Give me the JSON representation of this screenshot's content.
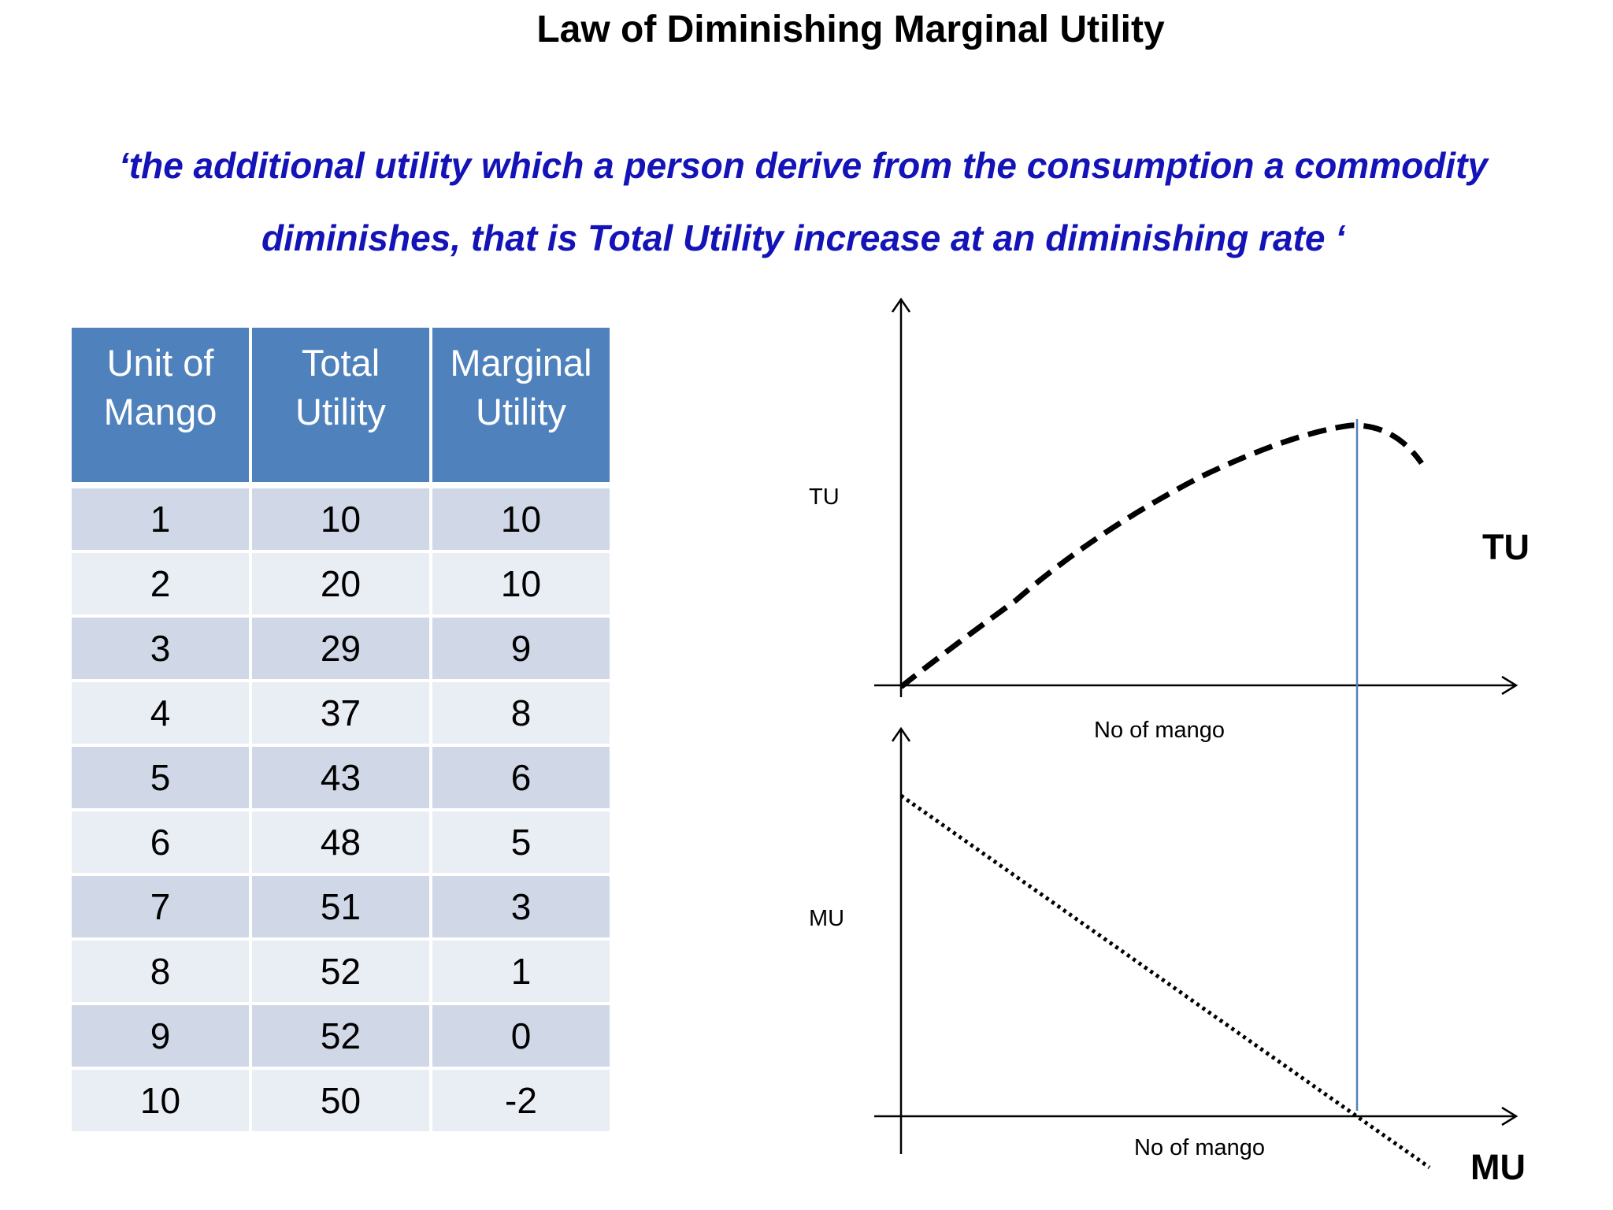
{
  "title": "Law of Diminishing Marginal Utility",
  "definition": {
    "line1": "‘the additional utility which a person derive from the consumption a commodity",
    "line2": "diminishes, that is Total Utility increase at an diminishing rate ‘"
  },
  "table": {
    "headers": [
      [
        "Unit of",
        "Mango"
      ],
      [
        "Total",
        "Utility"
      ],
      [
        "Marginal",
        "Utility"
      ]
    ],
    "rows": [
      [
        "1",
        "10",
        "10"
      ],
      [
        "2",
        "20",
        "10"
      ],
      [
        "3",
        "29",
        "9"
      ],
      [
        "4",
        "37",
        "8"
      ],
      [
        "5",
        "43",
        "6"
      ],
      [
        "6",
        "48",
        "5"
      ],
      [
        "7",
        "51",
        "3"
      ],
      [
        "8",
        "52",
        "1"
      ],
      [
        "9",
        "52",
        "0"
      ],
      [
        "10",
        "50",
        "-2"
      ]
    ]
  },
  "diagram": {
    "tu_axis_label": "TU",
    "mu_axis_label": "MU",
    "tu_x_label": "No of mango",
    "mu_x_label": "No of mango",
    "tu_curve_label": "TU",
    "mu_curve_label": "MU",
    "colors": {
      "curve": "#000000",
      "axis": "#000000",
      "marker_line": "#4f81bd"
    }
  }
}
